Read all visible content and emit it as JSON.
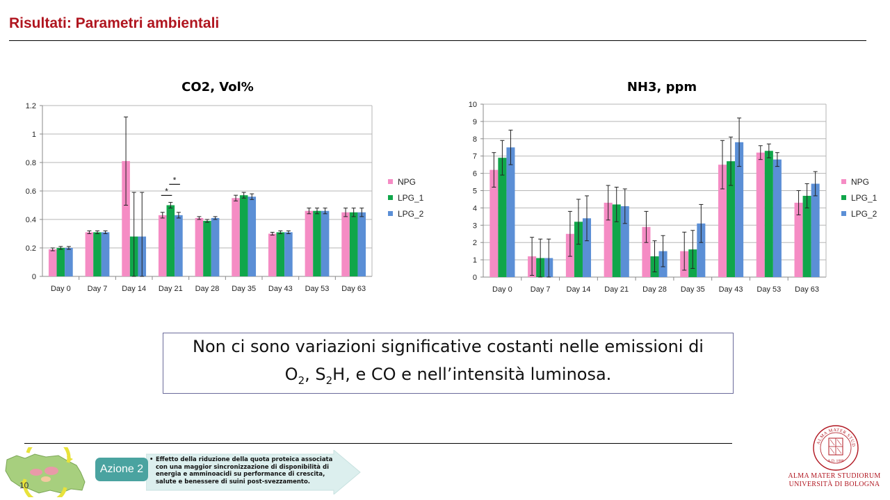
{
  "slide": {
    "title": "Risultati: Parametri ambientali",
    "page_number": "10"
  },
  "colors": {
    "accent": "#b0151f",
    "NPG": "#f58cc4",
    "LPG_1": "#10a64a",
    "LPG_2": "#5b8fd6"
  },
  "note": {
    "line1": "Non ci sono variazioni significative costanti nelle emissioni di",
    "o": "O",
    "o_sub": "2",
    "sep1": ", ",
    "s": "S",
    "s_sub": "2",
    "h": "H",
    "rest": ", e CO e nell’intensità luminosa."
  },
  "footer": {
    "azione_label": "Azione 2",
    "azione_text": "Effetto della riduzione della quota proteica associata con una maggior sincronizzazione di disponibilità di energia e amminoacidi su performance di crescita, salute e benessere di suini post-svezzamento.",
    "university_line1": "ALMA MATER STUDIORUM",
    "university_line2": "UNIVERSITÀ DI BOLOGNA",
    "seal_text": "ALMA MATER STUDIORUM",
    "seal_year": "A.D. 1088",
    "map_icon": "region-map-icon",
    "seal_icon": "university-seal-icon"
  },
  "chart_data": [
    {
      "type": "bar",
      "title": "CO2, Vol%",
      "xlabel": "",
      "ylabel": "",
      "categories": [
        "Day 0",
        "Day 7",
        "Day 14",
        "Day 21",
        "Day 28",
        "Day 35",
        "Day 43",
        "Day 53",
        "Day 63"
      ],
      "ylim": [
        0,
        1.2
      ],
      "yticks": [
        0,
        0.2,
        0.4,
        0.6,
        0.8,
        1,
        1.2
      ],
      "ytick_labels": [
        "0",
        "0.2",
        "0.4",
        "0.6",
        "0.8",
        "1",
        "1.2"
      ],
      "grid": true,
      "legend": "right",
      "series": [
        {
          "name": "NPG",
          "values": [
            0.19,
            0.31,
            0.81,
            0.43,
            0.41,
            0.55,
            0.3,
            0.46,
            0.45
          ],
          "errors": [
            0.01,
            0.01,
            0.31,
            0.02,
            0.01,
            0.02,
            0.01,
            0.02,
            0.03
          ]
        },
        {
          "name": "LPG_1",
          "values": [
            0.2,
            0.31,
            0.28,
            0.5,
            0.39,
            0.57,
            0.31,
            0.46,
            0.45
          ],
          "errors": [
            0.01,
            0.01,
            0.31,
            0.02,
            0.01,
            0.02,
            0.01,
            0.02,
            0.03
          ]
        },
        {
          "name": "LPG_2",
          "values": [
            0.2,
            0.31,
            0.28,
            0.43,
            0.41,
            0.56,
            0.31,
            0.46,
            0.45
          ],
          "errors": [
            0.01,
            0.01,
            0.31,
            0.02,
            0.01,
            0.02,
            0.01,
            0.02,
            0.03
          ]
        }
      ],
      "annotations": [
        {
          "text": "*",
          "category": "Day 21",
          "between": [
            "NPG",
            "LPG_1"
          ]
        },
        {
          "text": "*",
          "category": "Day 21",
          "between": [
            "LPG_1",
            "LPG_2"
          ]
        }
      ]
    },
    {
      "type": "bar",
      "title": "NH3, ppm",
      "xlabel": "",
      "ylabel": "",
      "categories": [
        "Day 0",
        "Day 7",
        "Day 14",
        "Day 21",
        "Day 28",
        "Day 35",
        "Day 43",
        "Day 53",
        "Day 63"
      ],
      "ylim": [
        0,
        10
      ],
      "yticks": [
        0,
        1,
        2,
        3,
        4,
        5,
        6,
        7,
        8,
        9,
        10
      ],
      "ytick_labels": [
        "0",
        "1",
        "2",
        "3",
        "4",
        "5",
        "6",
        "7",
        "8",
        "9",
        "10"
      ],
      "grid": true,
      "legend": "right",
      "series": [
        {
          "name": "NPG",
          "values": [
            6.2,
            1.2,
            2.5,
            4.3,
            2.9,
            1.5,
            6.5,
            7.2,
            4.3
          ],
          "errors": [
            1.0,
            1.1,
            1.3,
            1.0,
            0.9,
            1.1,
            1.4,
            0.4,
            0.7
          ]
        },
        {
          "name": "LPG_1",
          "values": [
            6.9,
            1.1,
            3.2,
            4.2,
            1.2,
            1.6,
            6.7,
            7.3,
            4.7
          ],
          "errors": [
            1.0,
            1.1,
            1.3,
            1.0,
            0.9,
            1.1,
            1.4,
            0.4,
            0.7
          ]
        },
        {
          "name": "LPG_2",
          "values": [
            7.5,
            1.1,
            3.4,
            4.1,
            1.5,
            3.1,
            7.8,
            6.8,
            5.4
          ],
          "errors": [
            1.0,
            1.1,
            1.3,
            1.0,
            0.9,
            1.1,
            1.4,
            0.4,
            0.7
          ]
        }
      ],
      "annotations": []
    }
  ]
}
